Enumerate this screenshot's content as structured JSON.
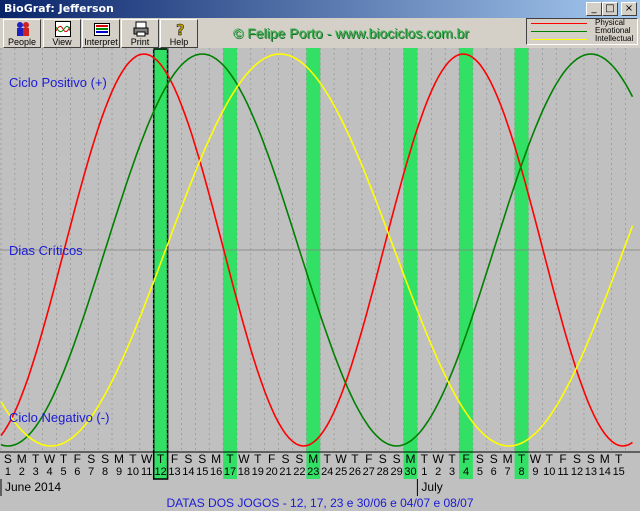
{
  "window": {
    "title": "BioGraf: Jefferson",
    "buttons": [
      "_",
      "□",
      "×"
    ]
  },
  "toolbar": [
    {
      "label": "People",
      "icon": "people-icon"
    },
    {
      "label": "View",
      "icon": "view-icon"
    },
    {
      "label": "Interpret",
      "icon": "interpret-icon"
    },
    {
      "label": "Print",
      "icon": "print-icon"
    },
    {
      "label": "Help",
      "icon": "help-icon"
    }
  ],
  "credit": "© Felipe Porto - www.biociclos.com.br",
  "legend": [
    {
      "name": "Physical",
      "color": "#ff0000"
    },
    {
      "name": "Emotional",
      "color": "#008000"
    },
    {
      "name": "Intellectual",
      "color": "#ffff00"
    }
  ],
  "zones": {
    "positive": "Ciclo Positivo (+)",
    "critical": "Dias Críticos",
    "negative": "Ciclo Negativo (-)"
  },
  "footer": "DATAS DOS JOGOS - 12, 17, 23 e 30/06 e 04/07 e 08/07",
  "chart_data": {
    "type": "line",
    "months": [
      {
        "name": "June 2014",
        "start_index": 0
      },
      {
        "name": "July",
        "start_index": 30
      }
    ],
    "days": [
      {
        "dow": "S",
        "date": "1"
      },
      {
        "dow": "M",
        "date": "2"
      },
      {
        "dow": "T",
        "date": "3"
      },
      {
        "dow": "W",
        "date": "4"
      },
      {
        "dow": "T",
        "date": "5"
      },
      {
        "dow": "F",
        "date": "6"
      },
      {
        "dow": "S",
        "date": "7"
      },
      {
        "dow": "S",
        "date": "8"
      },
      {
        "dow": "M",
        "date": "9"
      },
      {
        "dow": "T",
        "date": "10"
      },
      {
        "dow": "W",
        "date": "11"
      },
      {
        "dow": "T",
        "date": "12"
      },
      {
        "dow": "F",
        "date": "13"
      },
      {
        "dow": "S",
        "date": "14"
      },
      {
        "dow": "S",
        "date": "15"
      },
      {
        "dow": "M",
        "date": "16"
      },
      {
        "dow": "T",
        "date": "17"
      },
      {
        "dow": "W",
        "date": "18"
      },
      {
        "dow": "T",
        "date": "19"
      },
      {
        "dow": "F",
        "date": "20"
      },
      {
        "dow": "S",
        "date": "21"
      },
      {
        "dow": "S",
        "date": "22"
      },
      {
        "dow": "M",
        "date": "23"
      },
      {
        "dow": "T",
        "date": "24"
      },
      {
        "dow": "W",
        "date": "25"
      },
      {
        "dow": "T",
        "date": "26"
      },
      {
        "dow": "F",
        "date": "27"
      },
      {
        "dow": "S",
        "date": "28"
      },
      {
        "dow": "S",
        "date": "29"
      },
      {
        "dow": "M",
        "date": "30"
      },
      {
        "dow": "T",
        "date": "1"
      },
      {
        "dow": "W",
        "date": "2"
      },
      {
        "dow": "T",
        "date": "3"
      },
      {
        "dow": "F",
        "date": "4"
      },
      {
        "dow": "S",
        "date": "5"
      },
      {
        "dow": "S",
        "date": "6"
      },
      {
        "dow": "M",
        "date": "7"
      },
      {
        "dow": "T",
        "date": "8"
      },
      {
        "dow": "W",
        "date": "9"
      },
      {
        "dow": "T",
        "date": "10"
      },
      {
        "dow": "F",
        "date": "11"
      },
      {
        "dow": "S",
        "date": "12"
      },
      {
        "dow": "S",
        "date": "13"
      },
      {
        "dow": "M",
        "date": "14"
      },
      {
        "dow": "T",
        "date": "15"
      }
    ],
    "highlighted_day_indices": [
      11,
      16,
      22,
      29,
      33,
      37
    ],
    "current_day_index": 11,
    "ylim": [
      -1,
      1
    ],
    "grid": true,
    "series": [
      {
        "name": "Physical",
        "color": "#ff0000",
        "period_days": 23,
        "peak_day_index": 9.8
      },
      {
        "name": "Emotional",
        "color": "#008000",
        "period_days": 28,
        "peak_day_index": 14.0
      },
      {
        "name": "Intellectual",
        "color": "#ffff00",
        "period_days": 33,
        "peak_day_index": 19.6
      }
    ]
  }
}
